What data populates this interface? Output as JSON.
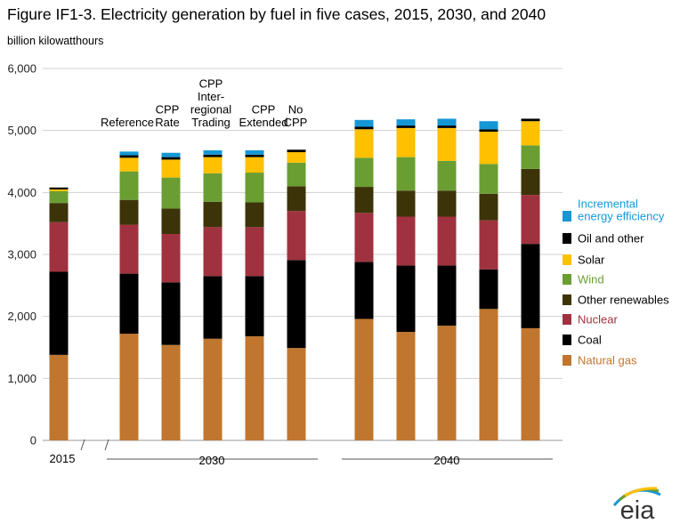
{
  "title": "Figure IF1-3. Electricity generation by fuel in five cases, 2015, 2030, and 2040",
  "units": "billion kilowatthours",
  "logo_text": "eia",
  "chart_data": {
    "type": "bar",
    "stacked": true,
    "ylim": [
      0,
      6000
    ],
    "yticks": [
      "0",
      "1,000",
      "2,000",
      "3,000",
      "4,000",
      "5,000",
      "6,000"
    ],
    "ytick_values": [
      0,
      1000,
      2000,
      3000,
      4000,
      5000,
      6000
    ],
    "grid": true,
    "legend_position": "right",
    "groups": [
      {
        "label": "2015",
        "bars": [
          0
        ]
      },
      {
        "label": "2030",
        "bars": [
          1,
          2,
          3,
          4,
          5
        ]
      },
      {
        "label": "2040",
        "bars": [
          6,
          7,
          8,
          9,
          10
        ]
      }
    ],
    "case_labels": [
      {
        "bar": 1,
        "lines": [
          "Reference"
        ]
      },
      {
        "bar": 2,
        "lines": [
          "CPP",
          "Rate"
        ]
      },
      {
        "bar": 3,
        "lines": [
          "CPP",
          "Inter-",
          "regional",
          "Trading"
        ]
      },
      {
        "bar": 4,
        "lines": [
          "CPP",
          "Extended"
        ]
      },
      {
        "bar": 5,
        "lines": [
          "No",
          "CPP"
        ]
      }
    ],
    "series": [
      {
        "name": "Natural gas",
        "color": "#C0762E",
        "values": [
          1380,
          1720,
          1540,
          1640,
          1680,
          1490,
          1960,
          1750,
          1850,
          2120,
          1810
        ]
      },
      {
        "name": "Coal",
        "color": "#000000",
        "values": [
          1340,
          970,
          1010,
          1010,
          970,
          1420,
          920,
          1070,
          970,
          640,
          1360
        ]
      },
      {
        "name": "Nuclear",
        "color": "#A0323F",
        "values": [
          800,
          790,
          780,
          790,
          790,
          790,
          790,
          790,
          790,
          790,
          790
        ]
      },
      {
        "name": "Other renewables",
        "color": "#3D3309",
        "values": [
          310,
          400,
          410,
          410,
          400,
          400,
          420,
          420,
          420,
          430,
          420
        ]
      },
      {
        "name": "Wind",
        "color": "#6A9E33",
        "values": [
          190,
          460,
          500,
          460,
          480,
          380,
          470,
          540,
          480,
          480,
          380
        ]
      },
      {
        "name": "Solar",
        "color": "#FFC000",
        "values": [
          30,
          220,
          290,
          260,
          250,
          170,
          460,
          470,
          530,
          520,
          390
        ]
      },
      {
        "name": "Oil and other",
        "color": "#000000",
        "values": [
          30,
          40,
          40,
          40,
          40,
          40,
          40,
          40,
          40,
          40,
          40
        ]
      },
      {
        "name": "Incremental energy efficiency",
        "color": "#1597D6",
        "values": [
          0,
          60,
          70,
          70,
          70,
          0,
          110,
          100,
          110,
          130,
          0
        ]
      }
    ],
    "legend": [
      {
        "lines": [
          "Incremental",
          "energy efficiency"
        ],
        "color": "#1597D6",
        "text_color": "#1597D6"
      },
      {
        "lines": [
          "Oil and other"
        ],
        "color": "#000000",
        "text_color": "#000000"
      },
      {
        "lines": [
          "Solar"
        ],
        "color": "#FFC000",
        "text_color": "#000000"
      },
      {
        "lines": [
          "Wind"
        ],
        "color": "#6A9E33",
        "text_color": "#6A9E33"
      },
      {
        "lines": [
          "Other renewables"
        ],
        "color": "#3D3309",
        "text_color": "#000000"
      },
      {
        "lines": [
          "Nuclear"
        ],
        "color": "#A0323F",
        "text_color": "#A0323F"
      },
      {
        "lines": [
          "Coal"
        ],
        "color": "#000000",
        "text_color": "#000000"
      },
      {
        "lines": [
          "Natural gas"
        ],
        "color": "#C0762E",
        "text_color": "#C0762E"
      }
    ]
  }
}
